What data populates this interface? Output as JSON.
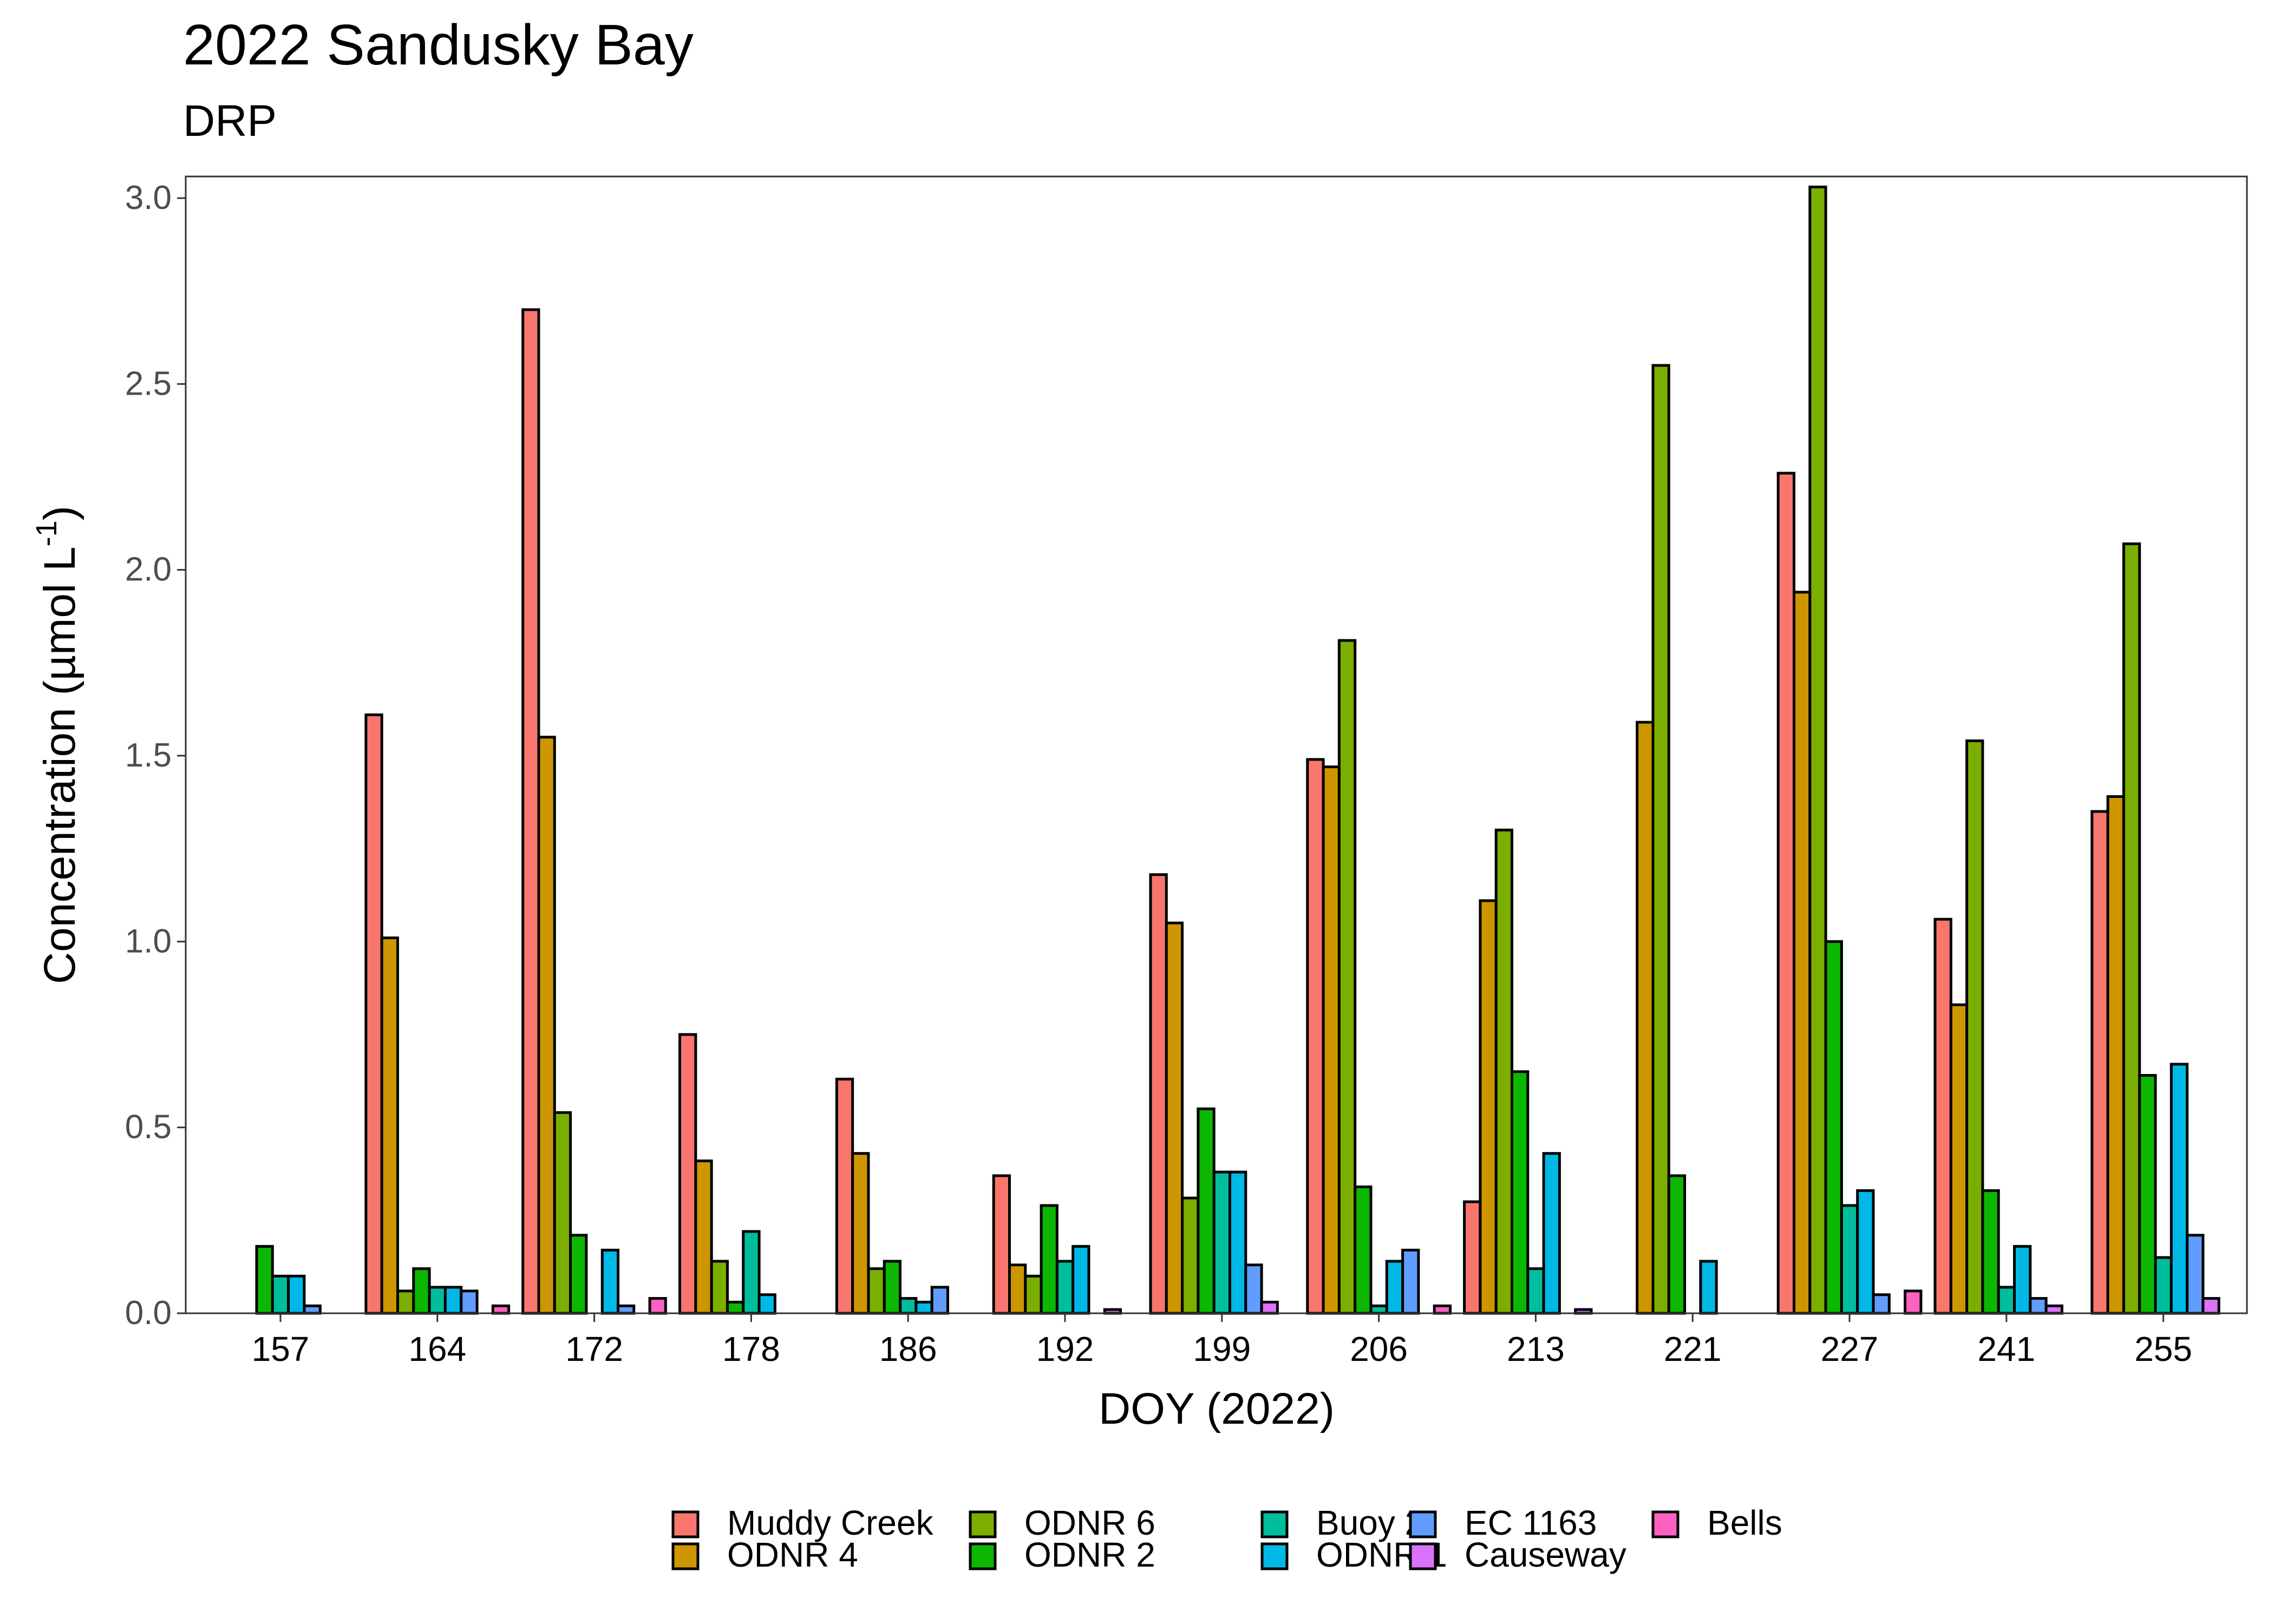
{
  "chart_data": {
    "type": "bar",
    "title": "2022 Sandusky Bay",
    "subtitle": "DRP",
    "xlabel": "DOY (2022)",
    "ylabel": "Concentration (µmol L",
    "ylabel_superscript": "-1",
    "ylabel_suffix": ")",
    "ylim": [
      0,
      3.0
    ],
    "yticks": [
      "0.0",
      "0.5",
      "1.0",
      "1.5",
      "2.0",
      "2.5",
      "3.0"
    ],
    "grid": false,
    "legend_position": "bottom",
    "categories": [
      "157",
      "164",
      "172",
      "178",
      "186",
      "192",
      "199",
      "206",
      "213",
      "221",
      "227",
      "241",
      "255"
    ],
    "series": [
      {
        "name": "Muddy Creek",
        "color": "#F8766D",
        "values": [
          null,
          1.61,
          2.7,
          0.75,
          0.63,
          0.37,
          1.18,
          1.49,
          0.3,
          null,
          2.26,
          1.06,
          1.35
        ]
      },
      {
        "name": "ODNR 4",
        "color": "#CD9600",
        "values": [
          null,
          1.01,
          1.55,
          0.41,
          0.43,
          0.13,
          1.05,
          1.47,
          1.11,
          1.59,
          1.94,
          0.83,
          1.39
        ]
      },
      {
        "name": "ODNR 6",
        "color": "#7CAE00",
        "values": [
          null,
          0.06,
          0.54,
          0.14,
          0.12,
          0.1,
          0.31,
          1.81,
          1.3,
          2.55,
          3.03,
          1.54,
          2.07
        ]
      },
      {
        "name": "ODNR 2",
        "color": "#0CB702",
        "values": [
          0.18,
          0.12,
          0.21,
          0.03,
          0.14,
          0.29,
          0.55,
          0.34,
          0.65,
          0.37,
          1.0,
          0.33,
          0.64
        ]
      },
      {
        "name": "Buoy 2",
        "color": "#00BE9C",
        "values": [
          0.1,
          0.07,
          null,
          0.22,
          0.04,
          0.14,
          0.38,
          0.02,
          0.12,
          null,
          0.29,
          0.07,
          0.15
        ]
      },
      {
        "name": "ODNR 1",
        "color": "#00B8E5",
        "values": [
          0.1,
          0.07,
          0.17,
          0.05,
          0.03,
          0.18,
          0.38,
          0.14,
          0.43,
          0.14,
          0.33,
          0.18,
          0.67
        ]
      },
      {
        "name": "EC 1163",
        "color": "#619CFF",
        "values": [
          0.02,
          0.06,
          0.02,
          null,
          0.07,
          null,
          0.13,
          0.17,
          null,
          null,
          0.05,
          0.04,
          0.21
        ]
      },
      {
        "name": "Causeway",
        "color": "#DB72FB",
        "values": [
          null,
          null,
          null,
          null,
          null,
          0.01,
          0.03,
          null,
          0.01,
          null,
          null,
          0.02,
          0.04
        ]
      },
      {
        "name": "Bells",
        "color": "#FF61C3",
        "values": [
          null,
          0.02,
          0.04,
          null,
          null,
          null,
          null,
          0.02,
          null,
          null,
          0.06,
          null,
          null
        ]
      }
    ]
  }
}
